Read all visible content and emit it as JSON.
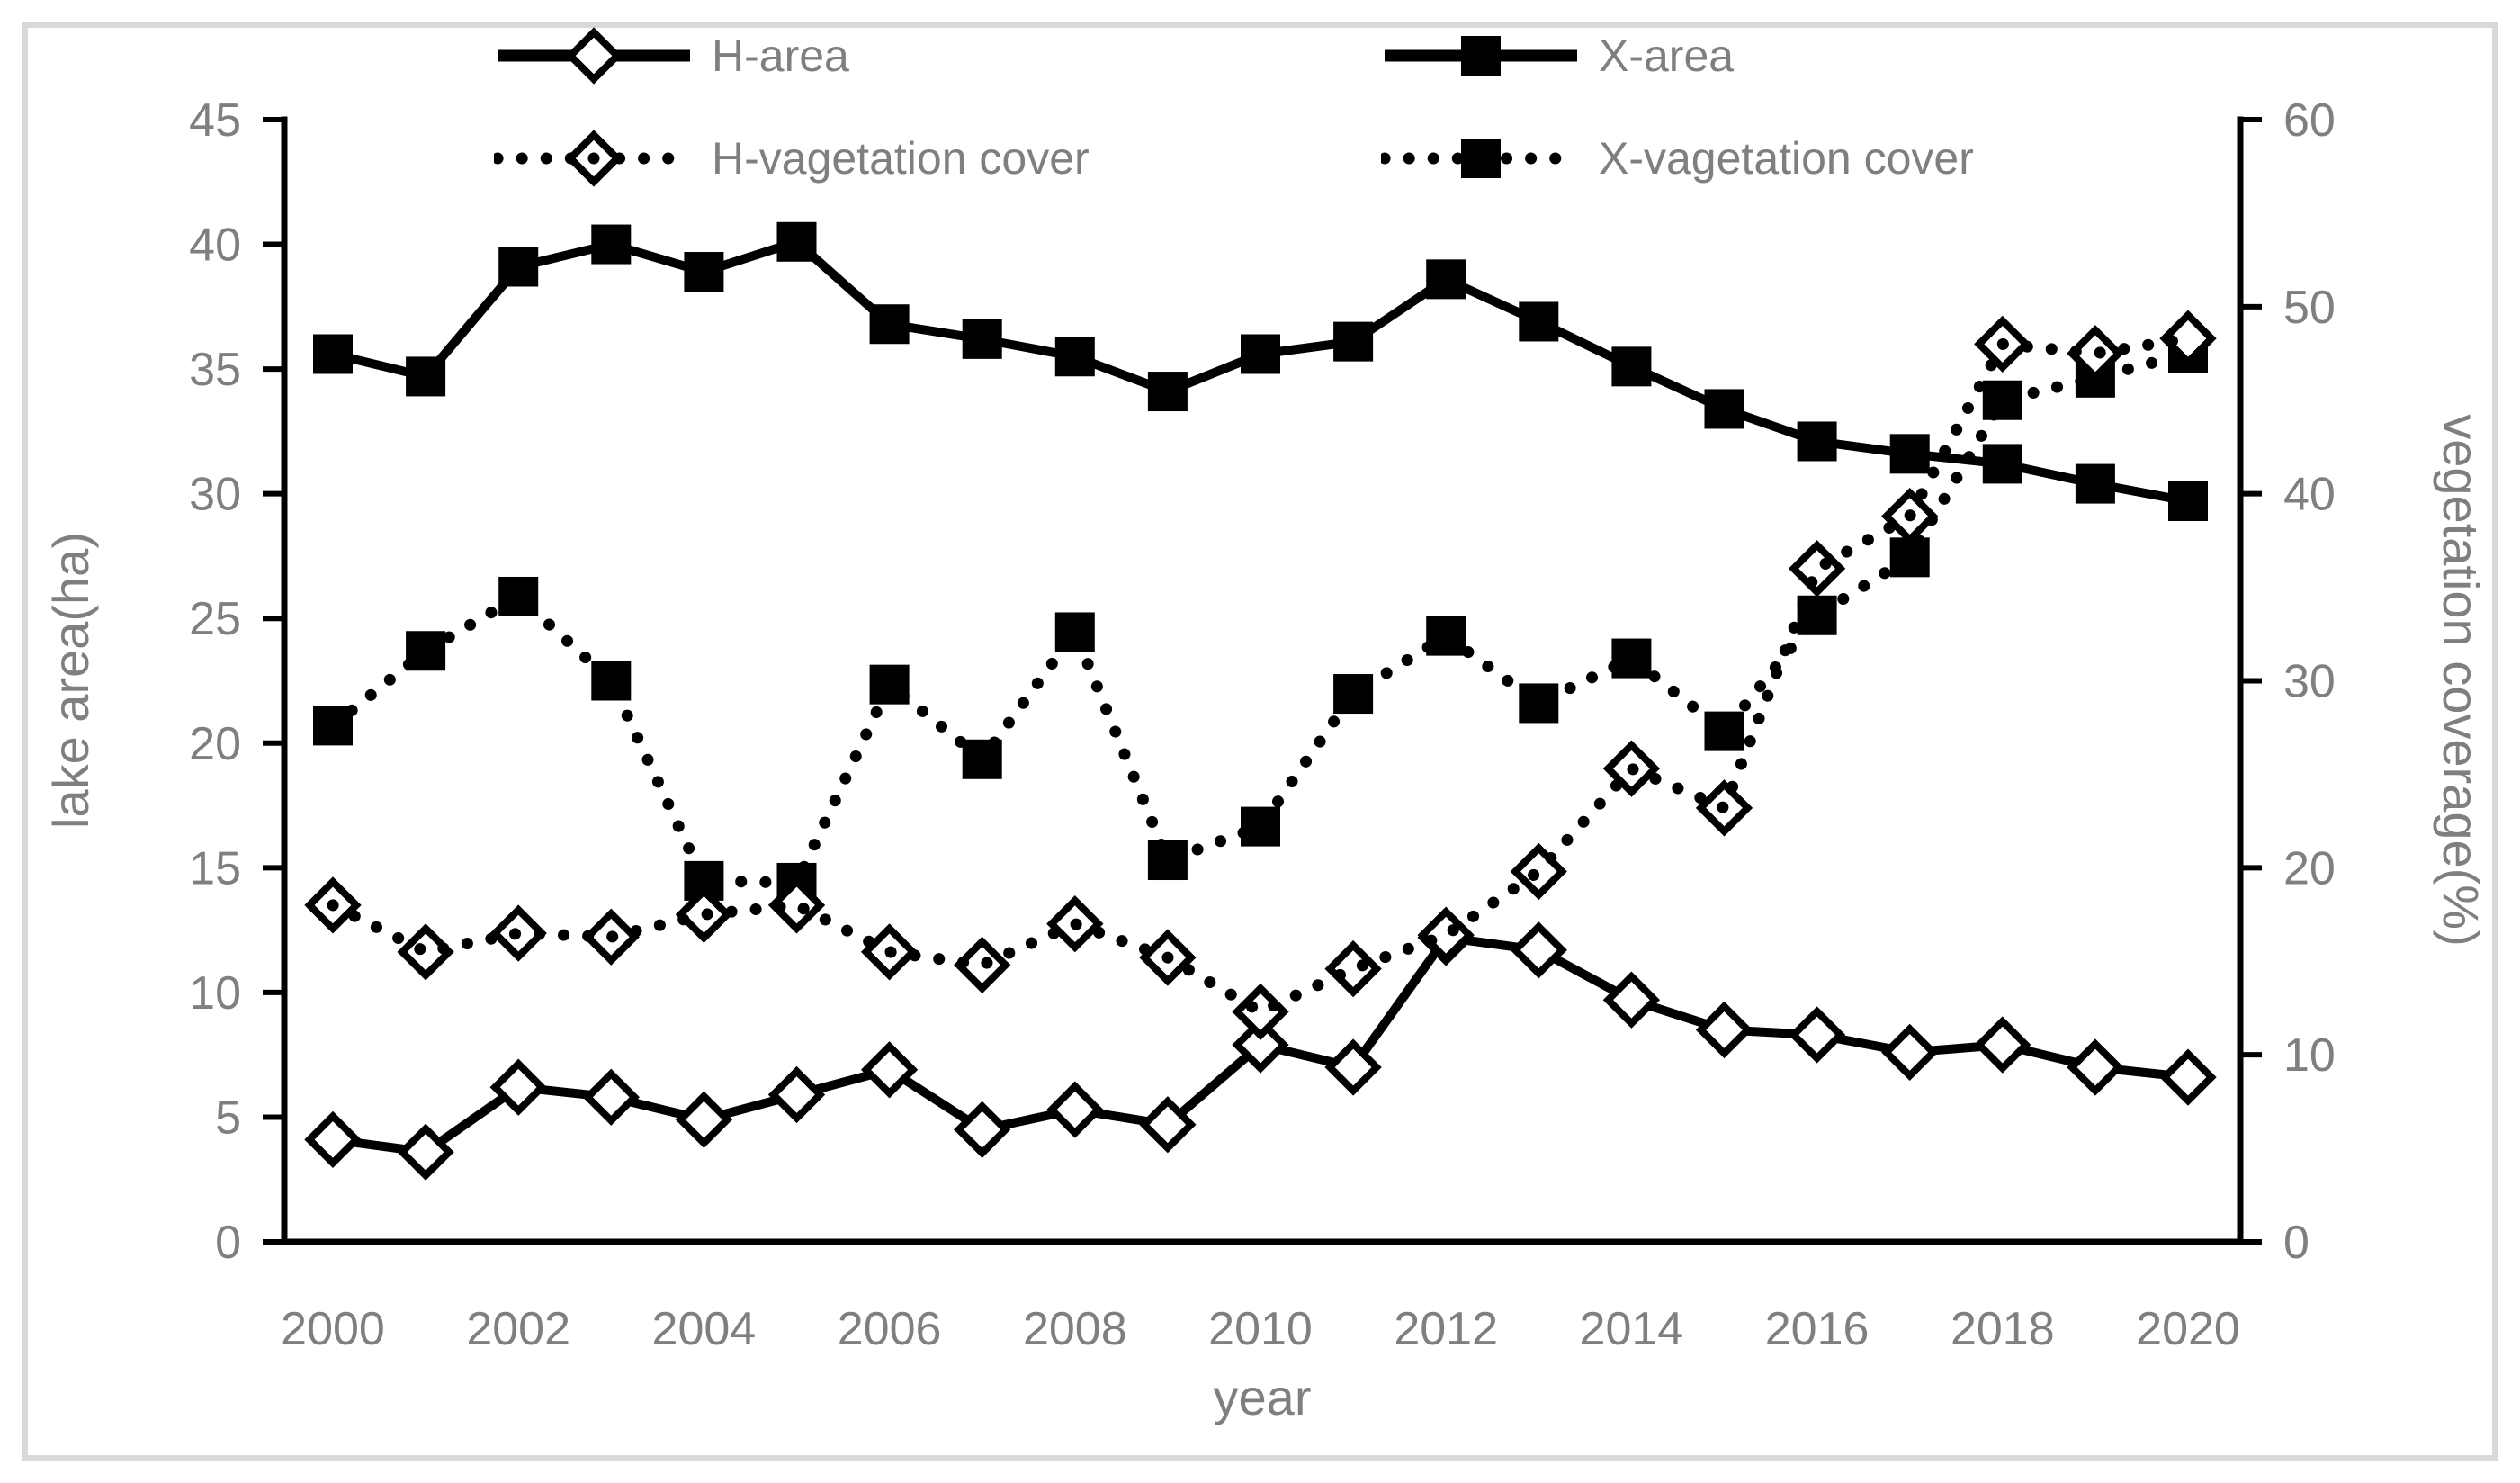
{
  "colors": {
    "series": "#000000",
    "text": "#7f7f7f",
    "axis": "#000000",
    "figure_border": "#d9d9d9",
    "background": "#ffffff"
  },
  "legend": {
    "row1_label_1": "H-area",
    "row1_label_2": "X-area",
    "row2_label_1": "H-vagetation cover",
    "row2_label_2": "X-vagetation cover"
  },
  "chart_data": {
    "type": "line",
    "title": "",
    "x": [
      2000,
      2001,
      2002,
      2003,
      2004,
      2005,
      2006,
      2007,
      2008,
      2009,
      2010,
      2011,
      2012,
      2013,
      2014,
      2015,
      2016,
      2017,
      2018,
      2019,
      2020
    ],
    "series": [
      {
        "name": "H-area",
        "axis": "left",
        "line": "solid",
        "marker": "open-diamond",
        "values": [
          4.1,
          3.6,
          6.2,
          5.8,
          4.9,
          5.9,
          6.9,
          4.5,
          5.3,
          4.7,
          7.9,
          7.0,
          12.2,
          11.7,
          9.7,
          8.5,
          8.3,
          7.6,
          7.9,
          7.0,
          6.6
        ]
      },
      {
        "name": "X-area",
        "axis": "left",
        "line": "solid",
        "marker": "filled-square",
        "values": [
          35.6,
          34.7,
          39.1,
          40.0,
          38.9,
          40.1,
          36.8,
          36.2,
          35.5,
          34.1,
          35.6,
          36.1,
          38.6,
          36.9,
          35.1,
          33.4,
          32.1,
          31.6,
          31.2,
          30.4,
          29.7
        ]
      },
      {
        "name": "H-vagetation cover",
        "axis": "right",
        "line": "dotted",
        "marker": "open-diamond",
        "values": [
          18.0,
          15.5,
          16.5,
          16.3,
          17.5,
          18.0,
          15.5,
          14.8,
          17.0,
          15.2,
          12.3,
          14.6,
          16.4,
          19.8,
          25.3,
          23.2,
          36.0,
          38.8,
          48.0,
          47.5,
          48.3
        ]
      },
      {
        "name": "X-vagetation cover",
        "axis": "right",
        "line": "dotted",
        "marker": "filled-square",
        "values": [
          27.6,
          31.6,
          34.5,
          30.0,
          19.3,
          19.2,
          29.8,
          25.8,
          32.6,
          20.4,
          22.2,
          29.3,
          32.4,
          28.8,
          31.2,
          27.3,
          33.5,
          36.6,
          45.0,
          46.2,
          47.5
        ]
      }
    ],
    "left_axis": {
      "label": "lake area(ha)",
      "min": 0,
      "max": 45,
      "tick_step": 5
    },
    "right_axis": {
      "label": "vegetation coverage(%)",
      "min": 0,
      "max": 60,
      "tick_step": 10
    },
    "x_axis": {
      "label": "year",
      "tick_labels": [
        2000,
        2002,
        2004,
        2006,
        2008,
        2010,
        2012,
        2014,
        2016,
        2018,
        2020
      ]
    },
    "grid": false,
    "legend_position": "top"
  }
}
